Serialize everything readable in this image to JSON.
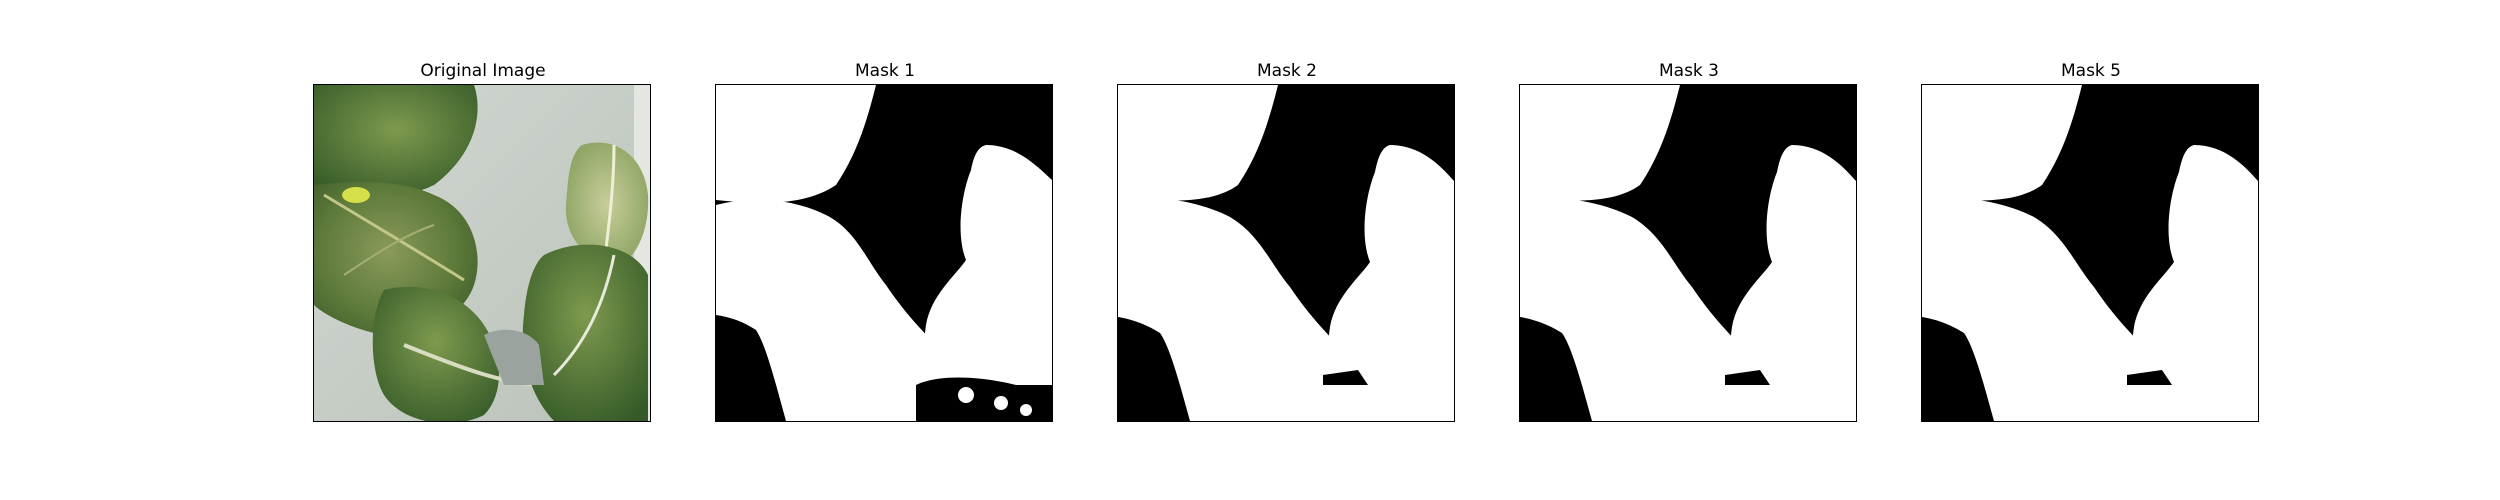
{
  "figure": {
    "panels": [
      {
        "title": "Original Image",
        "kind": "photo"
      },
      {
        "title": "Mask 1",
        "kind": "mask"
      },
      {
        "title": "Mask 2",
        "kind": "mask"
      },
      {
        "title": "Mask 3",
        "kind": "mask"
      },
      {
        "title": "Mask 5",
        "kind": "mask"
      }
    ]
  },
  "colors": {
    "background": "#ffffff",
    "mask_foreground": "#ffffff",
    "mask_background": "#000000",
    "leaf_dark": "#3f6130",
    "leaf_mid": "#6f8d4c",
    "leaf_light": "#a9b784",
    "backdrop": "#c7cdc6"
  }
}
